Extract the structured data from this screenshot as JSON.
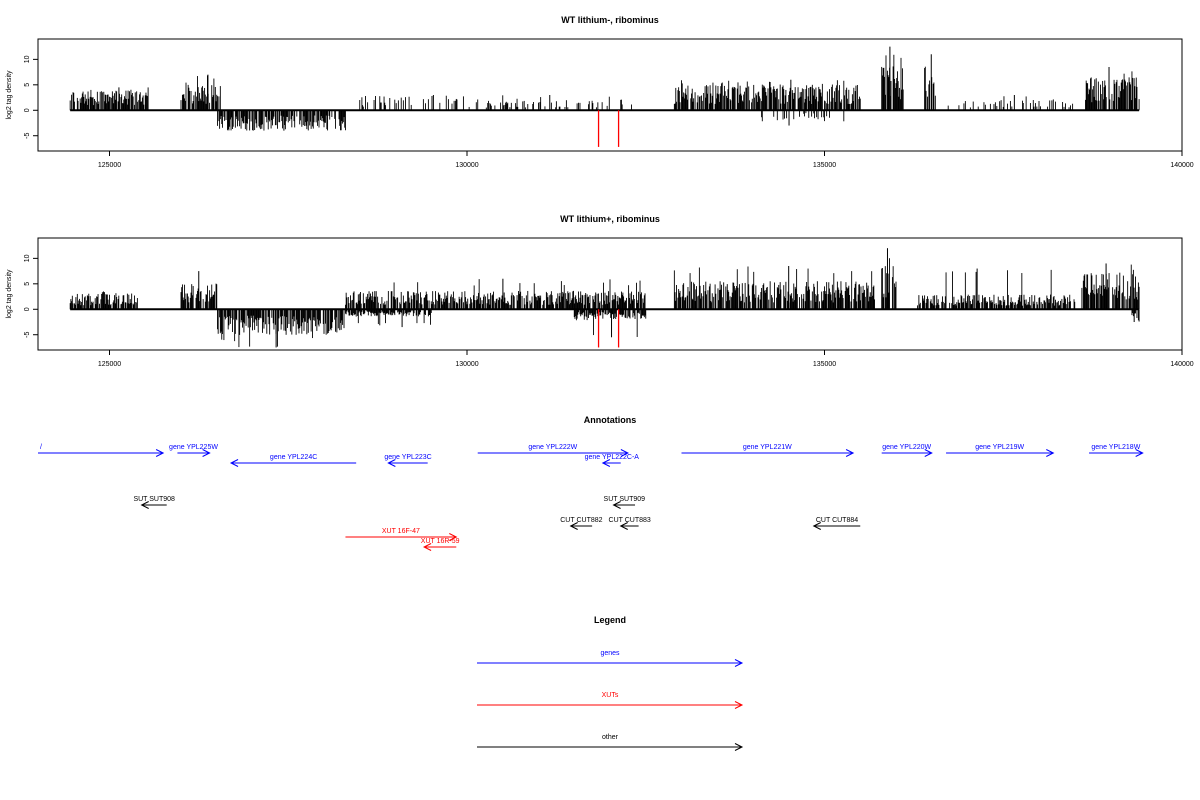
{
  "chart_data": [
    {
      "type": "bar",
      "title": "WT lithium-, ribominus",
      "xlabel": "",
      "ylabel": "log2 tag density",
      "xlim": [
        124000,
        140000
      ],
      "ylim": [
        -8,
        14
      ],
      "xticks": [
        125000,
        130000,
        135000,
        140000
      ],
      "yticks": [
        -5,
        0,
        5,
        10
      ],
      "x_range": [
        124450,
        139400
      ],
      "positive_segments": [
        {
          "x": [
            124450,
            125550
          ],
          "mean": 2.8,
          "max": 4.5
        },
        {
          "x": [
            126000,
            126550
          ],
          "mean": 3.5,
          "max": 7
        },
        {
          "x": [
            128500,
            130000
          ],
          "mean": 2,
          "max": 3,
          "sparse": true
        },
        {
          "x": [
            130000,
            132300
          ],
          "mean": 1.5,
          "max": 3,
          "sparse": true
        },
        {
          "x": [
            132900,
            135500
          ],
          "mean": 3.5,
          "max": 6
        },
        {
          "x": [
            135800,
            136100
          ],
          "mean": 6,
          "max": 12.5
        },
        {
          "x": [
            136400,
            136550
          ],
          "mean": 6,
          "max": 11
        },
        {
          "x": [
            136700,
            138500
          ],
          "mean": 1.5,
          "max": 3,
          "sparse": true
        },
        {
          "x": [
            138650,
            139400
          ],
          "mean": 4.5,
          "max": 8.5
        }
      ],
      "negative_segments": [
        {
          "x": [
            126500,
            128300
          ],
          "mean": -2.8,
          "min": -4
        },
        {
          "x": [
            134100,
            135300
          ],
          "mean": -1.5,
          "min": -3,
          "sparse": true
        }
      ],
      "highlight_values": [
        {
          "x": 131840,
          "y": -7.2
        },
        {
          "x": 132120,
          "y": -7.2
        }
      ],
      "series_color": "#000000",
      "highlight_color": "#ff0000"
    },
    {
      "type": "bar",
      "title": "WT lithium+, ribominus",
      "xlabel": "",
      "ylabel": "log2 tag density",
      "xlim": [
        124000,
        140000
      ],
      "ylim": [
        -8,
        14
      ],
      "xticks": [
        125000,
        130000,
        135000,
        140000
      ],
      "yticks": [
        -5,
        0,
        5,
        10
      ],
      "x_range": [
        124450,
        139400
      ],
      "positive_segments": [
        {
          "x": [
            124450,
            125400
          ],
          "mean": 2.2,
          "max": 3.5
        },
        {
          "x": [
            126000,
            126500
          ],
          "mean": 3.5,
          "max": 7.5
        },
        {
          "x": [
            128300,
            132500
          ],
          "mean": 2.5,
          "max": 6
        },
        {
          "x": [
            132900,
            135700
          ],
          "mean": 3.8,
          "max": 8.5
        },
        {
          "x": [
            135800,
            136000
          ],
          "mean": 6,
          "max": 12
        },
        {
          "x": [
            136300,
            138500
          ],
          "mean": 2,
          "max": 8
        },
        {
          "x": [
            138600,
            139400
          ],
          "mean": 5,
          "max": 9
        }
      ],
      "negative_segments": [
        {
          "x": [
            126500,
            128300
          ],
          "mean": -3.5,
          "min": -7.5
        },
        {
          "x": [
            128300,
            129500
          ],
          "mean": -1,
          "min": -3.5
        },
        {
          "x": [
            131500,
            132500
          ],
          "mean": -1.5,
          "min": -5.5
        },
        {
          "x": [
            139300,
            139400
          ],
          "mean": -2,
          "min": -2.5
        }
      ],
      "highlight_values": [
        {
          "x": 131840,
          "y": -7.5
        },
        {
          "x": 132120,
          "y": -7.5
        }
      ],
      "series_color": "#000000",
      "highlight_color": "#ff0000"
    }
  ],
  "annotations": {
    "title": "Annotations",
    "features": [
      {
        "label": "/",
        "start": 123900,
        "end": 125750,
        "strand": "+",
        "row": 0,
        "color": "#0000ff"
      },
      {
        "label": "gene YPL225W",
        "start": 125950,
        "end": 126400,
        "strand": "+",
        "row": 0,
        "color": "#0000ff"
      },
      {
        "label": "gene YPL224C",
        "start": 126700,
        "end": 128450,
        "strand": "-",
        "row": 1,
        "color": "#0000ff"
      },
      {
        "label": "gene YPL223C",
        "start": 128900,
        "end": 129450,
        "strand": "-",
        "row": 1,
        "color": "#0000ff"
      },
      {
        "label": "gene YPL222W",
        "start": 130150,
        "end": 132250,
        "strand": "+",
        "row": 0,
        "color": "#0000ff"
      },
      {
        "label": "gene YPL222C-A",
        "start": 131900,
        "end": 132150,
        "strand": "-",
        "row": 1,
        "color": "#0000ff"
      },
      {
        "label": "gene YPL221W",
        "start": 133000,
        "end": 135400,
        "strand": "+",
        "row": 0,
        "color": "#0000ff"
      },
      {
        "label": "gene YPL220W",
        "start": 135800,
        "end": 136500,
        "strand": "+",
        "row": 0,
        "color": "#0000ff"
      },
      {
        "label": "gene YPL219W",
        "start": 136700,
        "end": 138200,
        "strand": "+",
        "row": 0,
        "color": "#0000ff"
      },
      {
        "label": "gene YPL218W",
        "start": 138700,
        "end": 139450,
        "strand": "+",
        "row": 0,
        "color": "#0000ff"
      },
      {
        "label": "SUT SUT908",
        "start": 125450,
        "end": 125800,
        "strand": "-",
        "row": 2,
        "color": "#000000"
      },
      {
        "label": "SUT SUT909",
        "start": 132050,
        "end": 132350,
        "strand": "-",
        "row": 2,
        "color": "#000000"
      },
      {
        "label": "CUT CUT882",
        "start": 131450,
        "end": 131750,
        "strand": "-",
        "row": 3,
        "color": "#000000"
      },
      {
        "label": "CUT CUT883",
        "start": 132150,
        "end": 132400,
        "strand": "-",
        "row": 3,
        "color": "#000000"
      },
      {
        "label": "CUT CUT884",
        "start": 134850,
        "end": 135500,
        "strand": "-",
        "row": 3,
        "color": "#000000"
      },
      {
        "label": "XUT 16F-47",
        "start": 128300,
        "end": 129850,
        "strand": "+",
        "row": 4,
        "color": "#ff0000"
      },
      {
        "label": "XUT 16R-59",
        "start": 129400,
        "end": 129850,
        "strand": "-",
        "row": 5,
        "color": "#ff0000"
      }
    ]
  },
  "legend": {
    "title": "Legend",
    "items": [
      {
        "label": "genes",
        "color": "#0000ff"
      },
      {
        "label": "XUTs",
        "color": "#ff0000"
      },
      {
        "label": "other",
        "color": "#000000"
      }
    ]
  }
}
